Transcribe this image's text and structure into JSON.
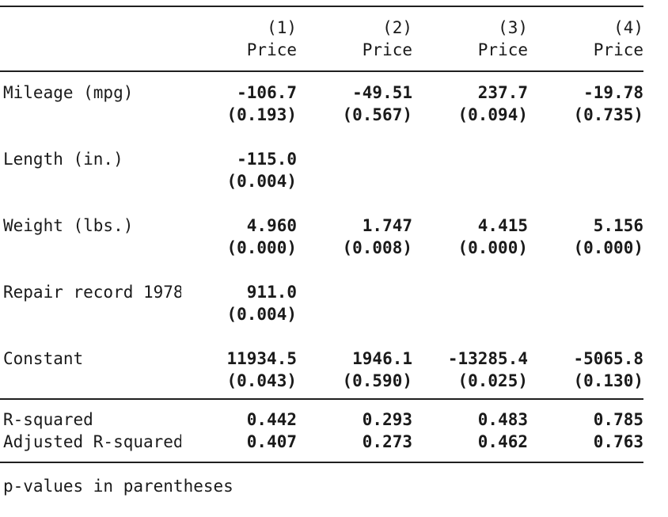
{
  "table": {
    "header": {
      "cols": [
        {
          "number": "(1)",
          "depvar": "Price"
        },
        {
          "number": "(2)",
          "depvar": "Price"
        },
        {
          "number": "(3)",
          "depvar": "Price"
        },
        {
          "number": "(4)",
          "depvar": "Price"
        }
      ]
    },
    "rows": [
      {
        "label": "Mileage (mpg)",
        "estimates": [
          "-106.7",
          "-49.51",
          "237.7",
          "-19.78"
        ],
        "pvalues": [
          "(0.193)",
          "(0.567)",
          "(0.094)",
          "(0.735)"
        ]
      },
      {
        "label": "Length (in.)",
        "estimates": [
          "-115.0",
          "",
          "",
          ""
        ],
        "pvalues": [
          "(0.004)",
          "",
          "",
          ""
        ]
      },
      {
        "label": "Weight (lbs.)",
        "estimates": [
          "4.960",
          "1.747",
          "4.415",
          "5.156"
        ],
        "pvalues": [
          "(0.000)",
          "(0.008)",
          "(0.000)",
          "(0.000)"
        ]
      },
      {
        "label": "Repair record 1978",
        "estimates": [
          "911.0",
          "",
          "",
          ""
        ],
        "pvalues": [
          "(0.004)",
          "",
          "",
          ""
        ]
      },
      {
        "label": "Constant",
        "estimates": [
          "11934.5",
          "1946.1",
          "-13285.4",
          "-5065.8"
        ],
        "pvalues": [
          "(0.043)",
          "(0.590)",
          "(0.025)",
          "(0.130)"
        ]
      }
    ],
    "stats": [
      {
        "label": "R-squared",
        "values": [
          "0.442",
          "0.293",
          "0.483",
          "0.785"
        ]
      },
      {
        "label": "Adjusted R-squared",
        "values": [
          "0.407",
          "0.273",
          "0.462",
          "0.763"
        ]
      }
    ],
    "footnote": "p-values in parentheses"
  },
  "colors": {
    "text": "#1a1a1a",
    "rule": "#1f1f1f",
    "background": "#ffffff",
    "bold_values": true
  }
}
